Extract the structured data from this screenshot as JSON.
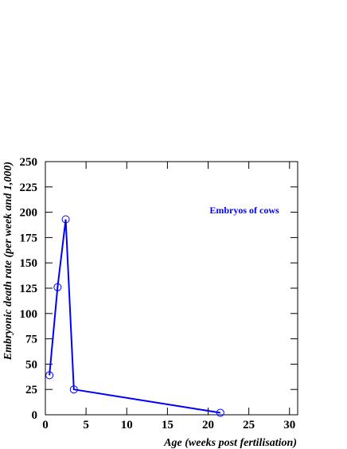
{
  "chart_data": {
    "type": "line",
    "x_label": "Age (weeks post fertilisation)",
    "y_label": "Embryonic death rate (per week and 1,000)",
    "annotation": "Embryos of cows",
    "x": [
      0.5,
      1.5,
      2.5,
      3.5,
      21.5
    ],
    "series": [
      {
        "name": "Embryos of cows",
        "color": "#0000ff",
        "values": [
          39,
          126,
          193,
          25,
          2
        ]
      }
    ],
    "xlim": [
      0,
      31
    ],
    "xticks": [
      0,
      5,
      10,
      15,
      20,
      25,
      30
    ],
    "ylim": [
      0,
      250
    ],
    "yticks": [
      0,
      25,
      50,
      75,
      100,
      125,
      150,
      175,
      200,
      225,
      250
    ],
    "grid": false
  }
}
